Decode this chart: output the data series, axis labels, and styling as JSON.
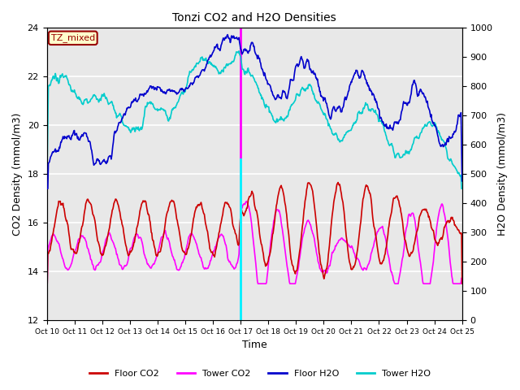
{
  "title": "Tonzi CO2 and H2O Densities",
  "xlabel": "Time",
  "ylabel_left": "CO2 Density (mmol/m3)",
  "ylabel_right": "H2O Density (mmol/m3)",
  "ylim_left": [
    12,
    24
  ],
  "ylim_right": [
    0,
    1000
  ],
  "xtick_labels": [
    "Oct 10",
    "Oct 11",
    "Oct 12",
    "Oct 13",
    "Oct 14",
    "Oct 15",
    "Oct 16",
    "Oct 17",
    "Oct 18",
    "Oct 19",
    "Oct 20",
    "Oct 21",
    "Oct 22",
    "Oct 23",
    "Oct 24",
    "Oct 25"
  ],
  "annotation_text": "TZ_mixed",
  "annotation_color": "#990000",
  "vline_color_magenta": "#ff00ff",
  "vline_color_cyan": "#00ffff",
  "colors": {
    "floor_co2": "#cc0000",
    "tower_co2": "#ff00ff",
    "floor_h2o": "#0000cc",
    "tower_h2o": "#00cccc"
  },
  "bg_color": "#e8e8e8",
  "grid_color": "#ffffff"
}
